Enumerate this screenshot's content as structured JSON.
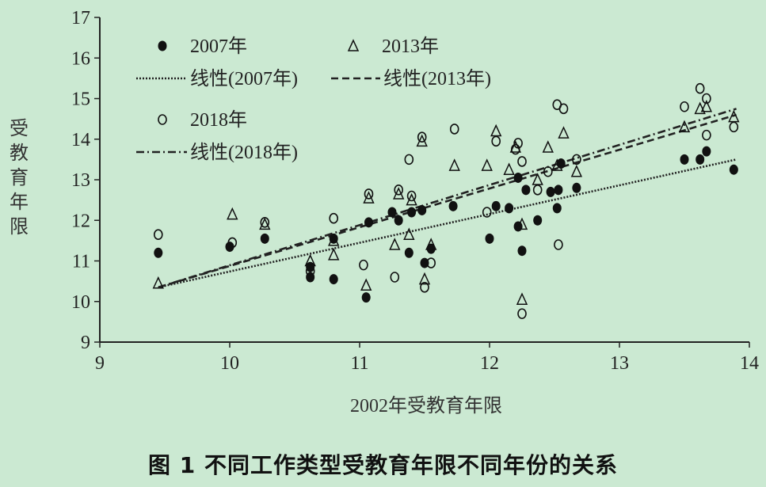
{
  "caption": "图 1   不同工作类型受教育年限不同年份的关系",
  "chart_data": {
    "type": "scatter",
    "xlabel": "2002年受教育年限",
    "ylabel": "受教育年限",
    "xlim": [
      9,
      14
    ],
    "ylim": [
      9,
      17
    ],
    "xticks": [
      9,
      10,
      11,
      12,
      13,
      14
    ],
    "yticks": [
      9,
      10,
      11,
      12,
      13,
      14,
      15,
      16,
      17
    ],
    "grid": false,
    "legend_position": "top-left",
    "series": [
      {
        "name": "2007年",
        "marker": "filled-circle",
        "trend_label": "线性(2007年)",
        "trend_style": "dotted",
        "trend": [
          [
            9.45,
            10.35
          ],
          [
            13.9,
            13.5
          ]
        ],
        "points": [
          [
            9.45,
            11.2
          ],
          [
            10.0,
            11.35
          ],
          [
            10.27,
            11.55
          ],
          [
            10.62,
            10.6
          ],
          [
            10.62,
            10.85
          ],
          [
            10.8,
            10.55
          ],
          [
            10.8,
            11.55
          ],
          [
            11.05,
            10.1
          ],
          [
            11.07,
            11.95
          ],
          [
            11.25,
            12.2
          ],
          [
            11.3,
            12.0
          ],
          [
            11.38,
            11.2
          ],
          [
            11.4,
            12.2
          ],
          [
            11.48,
            12.25
          ],
          [
            11.5,
            10.95
          ],
          [
            11.55,
            11.3
          ],
          [
            11.72,
            12.35
          ],
          [
            12.0,
            11.55
          ],
          [
            12.05,
            12.35
          ],
          [
            12.15,
            12.3
          ],
          [
            12.22,
            13.05
          ],
          [
            12.22,
            11.85
          ],
          [
            12.25,
            11.25
          ],
          [
            12.28,
            12.75
          ],
          [
            12.37,
            12.0
          ],
          [
            12.47,
            12.7
          ],
          [
            12.52,
            12.3
          ],
          [
            12.53,
            12.75
          ],
          [
            12.55,
            13.4
          ],
          [
            12.67,
            12.8
          ],
          [
            13.5,
            13.5
          ],
          [
            13.62,
            13.5
          ],
          [
            13.67,
            13.7
          ],
          [
            13.88,
            13.25
          ]
        ]
      },
      {
        "name": "2013年",
        "marker": "open-triangle",
        "trend_label": "线性(2013年)",
        "trend_style": "dashed",
        "trend": [
          [
            9.45,
            10.35
          ],
          [
            13.9,
            14.6
          ]
        ],
        "points": [
          [
            9.45,
            10.45
          ],
          [
            10.02,
            12.15
          ],
          [
            10.27,
            11.9
          ],
          [
            10.62,
            11.0
          ],
          [
            10.8,
            11.15
          ],
          [
            10.8,
            11.5
          ],
          [
            11.05,
            10.4
          ],
          [
            11.07,
            12.55
          ],
          [
            11.27,
            11.4
          ],
          [
            11.3,
            12.65
          ],
          [
            11.38,
            11.65
          ],
          [
            11.4,
            12.5
          ],
          [
            11.48,
            13.95
          ],
          [
            11.5,
            10.55
          ],
          [
            11.55,
            11.4
          ],
          [
            11.73,
            13.35
          ],
          [
            11.98,
            13.35
          ],
          [
            12.05,
            14.2
          ],
          [
            12.15,
            13.25
          ],
          [
            12.2,
            13.8
          ],
          [
            12.25,
            10.05
          ],
          [
            12.25,
            11.9
          ],
          [
            12.37,
            13.0
          ],
          [
            12.45,
            13.8
          ],
          [
            12.52,
            13.35
          ],
          [
            12.57,
            14.15
          ],
          [
            12.67,
            13.2
          ],
          [
            13.5,
            14.3
          ],
          [
            13.62,
            14.75
          ],
          [
            13.67,
            14.8
          ],
          [
            13.88,
            14.55
          ]
        ]
      },
      {
        "name": "2018年",
        "marker": "open-circle",
        "trend_label": "线性(2018年)",
        "trend_style": "dash-dot",
        "trend": [
          [
            9.45,
            10.35
          ],
          [
            13.9,
            14.75
          ]
        ],
        "points": [
          [
            9.45,
            11.65
          ],
          [
            10.02,
            11.45
          ],
          [
            10.27,
            11.95
          ],
          [
            10.62,
            10.75
          ],
          [
            10.8,
            12.05
          ],
          [
            11.03,
            10.9
          ],
          [
            11.07,
            12.65
          ],
          [
            11.27,
            10.6
          ],
          [
            11.3,
            12.75
          ],
          [
            11.38,
            13.5
          ],
          [
            11.4,
            12.6
          ],
          [
            11.48,
            14.05
          ],
          [
            11.5,
            10.35
          ],
          [
            11.55,
            10.95
          ],
          [
            11.73,
            14.25
          ],
          [
            11.98,
            12.2
          ],
          [
            12.05,
            13.95
          ],
          [
            12.2,
            13.75
          ],
          [
            12.22,
            13.9
          ],
          [
            12.25,
            9.7
          ],
          [
            12.25,
            13.45
          ],
          [
            12.37,
            12.75
          ],
          [
            12.45,
            13.2
          ],
          [
            12.52,
            14.85
          ],
          [
            12.53,
            11.4
          ],
          [
            12.57,
            14.75
          ],
          [
            12.67,
            13.5
          ],
          [
            13.5,
            14.8
          ],
          [
            13.62,
            15.25
          ],
          [
            13.67,
            15.0
          ],
          [
            13.67,
            14.1
          ],
          [
            13.88,
            14.3
          ]
        ]
      }
    ]
  }
}
